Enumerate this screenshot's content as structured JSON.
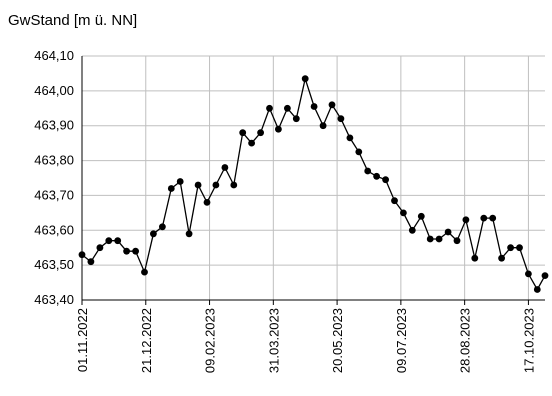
{
  "chart_data": {
    "type": "line",
    "title": "",
    "xlabel": "",
    "ylabel": "GwStand [m ü. NN]",
    "ylim": [
      463.4,
      464.1
    ],
    "yticks": [
      "464,10",
      "464,00",
      "463,90",
      "463,80",
      "463,70",
      "463,60",
      "463,50",
      "463,40"
    ],
    "xticks": [
      "01.11.2022",
      "21.12.2022",
      "09.02.2023",
      "31.03.2023",
      "20.05.2023",
      "09.07.2023",
      "28.08.2023",
      "17.10.2023"
    ],
    "xlim": [
      "01.11.2022",
      "30.10.2023"
    ],
    "grid": true,
    "line_color": "#000000",
    "series": [
      {
        "name": "",
        "x": [
          "01.11.2022",
          "08.11.2022",
          "15.11.2022",
          "22.11.2022",
          "29.11.2022",
          "06.12.2022",
          "13.12.2022",
          "20.12.2022",
          "27.12.2022",
          "03.01.2023",
          "10.01.2023",
          "17.01.2023",
          "24.01.2023",
          "31.01.2023",
          "07.02.2023",
          "14.02.2023",
          "21.02.2023",
          "28.02.2023",
          "07.03.2023",
          "14.03.2023",
          "21.03.2023",
          "28.03.2023",
          "04.04.2023",
          "11.04.2023",
          "18.04.2023",
          "25.04.2023",
          "02.05.2023",
          "09.05.2023",
          "16.05.2023",
          "23.05.2023",
          "30.05.2023",
          "06.06.2023",
          "13.06.2023",
          "20.06.2023",
          "27.06.2023",
          "04.07.2023",
          "11.07.2023",
          "18.07.2023",
          "25.07.2023",
          "01.08.2023",
          "08.08.2023",
          "15.08.2023",
          "22.08.2023",
          "29.08.2023",
          "05.09.2023",
          "12.09.2023",
          "19.09.2023",
          "26.09.2023",
          "03.10.2023",
          "10.10.2023",
          "17.10.2023",
          "24.10.2023",
          "30.10.2023"
        ],
        "y": [
          463.53,
          463.51,
          463.55,
          463.57,
          463.57,
          463.54,
          463.54,
          463.48,
          463.59,
          463.61,
          463.72,
          463.74,
          463.59,
          463.73,
          463.68,
          463.73,
          463.78,
          463.73,
          463.88,
          463.85,
          463.88,
          463.95,
          463.89,
          463.95,
          463.92,
          464.035,
          463.955,
          463.9,
          463.96,
          463.92,
          463.865,
          463.825,
          463.77,
          463.755,
          463.745,
          463.685,
          463.65,
          463.6,
          463.64,
          463.575,
          463.575,
          463.595,
          463.57,
          463.63,
          463.52,
          463.635,
          463.635,
          463.52,
          463.55,
          463.55,
          463.475,
          463.43,
          463.47
        ]
      }
    ]
  }
}
